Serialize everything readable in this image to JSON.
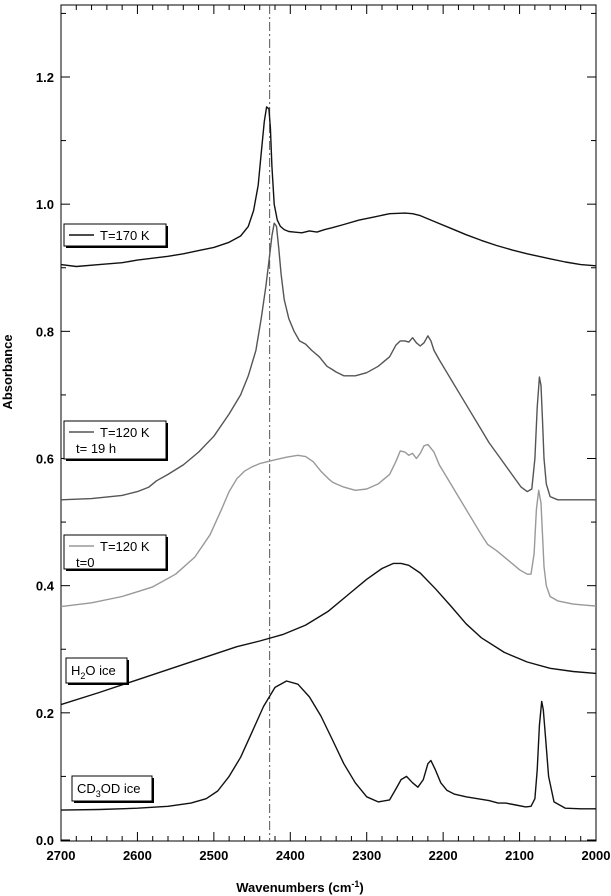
{
  "chart_data": {
    "type": "line",
    "xlabel": "Wavenumbers (cm",
    "xlabel_sup": "-1",
    "xlabel_end": ")",
    "ylabel": "Absorbance",
    "xlim": [
      2700,
      2000
    ],
    "ylim": [
      0.0,
      1.3
    ],
    "x_ticks": [
      2700,
      2600,
      2500,
      2400,
      2300,
      2200,
      2100,
      2000
    ],
    "x_tick_labels": [
      "2700",
      "2600",
      "2500",
      "2400",
      "2300",
      "2200",
      "2100",
      "2000"
    ],
    "y_ticks": [
      0.0,
      0.2,
      0.4,
      0.6,
      0.8,
      1.0,
      1.2
    ],
    "y_tick_labels": [
      "0.0",
      "0.2",
      "0.4",
      "0.6",
      "0.8",
      "1.0",
      "1.2"
    ],
    "grid": false,
    "reference_line_x": 2427,
    "series": [
      {
        "key": "t170",
        "legend_line1": "T=170 K",
        "legend_line2": "",
        "color": "#111111",
        "x": [
          2700,
          2680,
          2650,
          2620,
          2600,
          2580,
          2560,
          2540,
          2520,
          2500,
          2480,
          2465,
          2455,
          2448,
          2442,
          2438,
          2434,
          2431,
          2428,
          2426,
          2424,
          2421,
          2417,
          2413,
          2408,
          2402,
          2395,
          2385,
          2375,
          2365,
          2355,
          2345,
          2330,
          2310,
          2290,
          2270,
          2250,
          2240,
          2230,
          2210,
          2190,
          2170,
          2150,
          2130,
          2110,
          2090,
          2075,
          2060,
          2040,
          2020,
          2000
        ],
        "y": [
          0.905,
          0.902,
          0.905,
          0.908,
          0.912,
          0.915,
          0.918,
          0.922,
          0.927,
          0.932,
          0.94,
          0.95,
          0.965,
          0.99,
          1.03,
          1.08,
          1.13,
          1.153,
          1.15,
          1.12,
          1.06,
          1.0,
          0.975,
          0.965,
          0.96,
          0.957,
          0.956,
          0.955,
          0.958,
          0.956,
          0.96,
          0.963,
          0.968,
          0.975,
          0.98,
          0.985,
          0.986,
          0.985,
          0.982,
          0.972,
          0.962,
          0.952,
          0.943,
          0.935,
          0.928,
          0.922,
          0.918,
          0.914,
          0.909,
          0.905,
          0.903
        ]
      },
      {
        "key": "t120_19h",
        "legend_line1": "T=120 K",
        "legend_line2": "t= 19 h",
        "color": "#555555",
        "x": [
          2700,
          2660,
          2620,
          2600,
          2585,
          2575,
          2560,
          2540,
          2520,
          2500,
          2480,
          2465,
          2455,
          2445,
          2438,
          2432,
          2428,
          2424,
          2421,
          2418,
          2415,
          2412,
          2408,
          2402,
          2395,
          2388,
          2380,
          2372,
          2362,
          2352,
          2345,
          2340,
          2330,
          2315,
          2300,
          2285,
          2270,
          2262,
          2256,
          2250,
          2245,
          2240,
          2235,
          2230,
          2225,
          2220,
          2216,
          2212,
          2205,
          2195,
          2180,
          2165,
          2150,
          2140,
          2125,
          2110,
          2098,
          2090,
          2084,
          2080,
          2077,
          2074,
          2072,
          2070,
          2068,
          2065,
          2060,
          2050,
          2030,
          2010,
          2000
        ],
        "y": [
          0.535,
          0.537,
          0.542,
          0.548,
          0.555,
          0.565,
          0.575,
          0.59,
          0.61,
          0.635,
          0.67,
          0.7,
          0.73,
          0.77,
          0.82,
          0.87,
          0.91,
          0.95,
          0.97,
          0.965,
          0.93,
          0.89,
          0.85,
          0.82,
          0.8,
          0.785,
          0.78,
          0.77,
          0.76,
          0.745,
          0.74,
          0.736,
          0.73,
          0.73,
          0.735,
          0.745,
          0.76,
          0.778,
          0.785,
          0.785,
          0.783,
          0.79,
          0.782,
          0.777,
          0.782,
          0.793,
          0.785,
          0.77,
          0.755,
          0.735,
          0.705,
          0.675,
          0.645,
          0.625,
          0.6,
          0.575,
          0.555,
          0.548,
          0.552,
          0.6,
          0.68,
          0.728,
          0.715,
          0.66,
          0.6,
          0.56,
          0.54,
          0.535,
          0.535,
          0.535,
          0.535
        ]
      },
      {
        "key": "t120_0",
        "legend_line1": "T=120 K",
        "legend_line2": "t=0",
        "color": "#999999",
        "x": [
          2700,
          2660,
          2620,
          2580,
          2550,
          2525,
          2505,
          2490,
          2480,
          2470,
          2460,
          2450,
          2440,
          2430,
          2420,
          2405,
          2390,
          2380,
          2370,
          2360,
          2350,
          2345,
          2340,
          2330,
          2315,
          2300,
          2285,
          2270,
          2262,
          2256,
          2250,
          2245,
          2240,
          2235,
          2230,
          2225,
          2220,
          2212,
          2205,
          2195,
          2180,
          2165,
          2150,
          2142,
          2130,
          2115,
          2100,
          2090,
          2085,
          2081,
          2078,
          2075,
          2072,
          2070,
          2068,
          2065,
          2060,
          2050,
          2030,
          2010,
          2000
        ],
        "y": [
          0.367,
          0.373,
          0.383,
          0.398,
          0.418,
          0.445,
          0.48,
          0.52,
          0.548,
          0.568,
          0.58,
          0.587,
          0.592,
          0.595,
          0.598,
          0.602,
          0.605,
          0.603,
          0.595,
          0.58,
          0.568,
          0.563,
          0.56,
          0.555,
          0.55,
          0.552,
          0.56,
          0.575,
          0.595,
          0.612,
          0.61,
          0.605,
          0.608,
          0.6,
          0.608,
          0.62,
          0.622,
          0.61,
          0.59,
          0.57,
          0.54,
          0.51,
          0.48,
          0.465,
          0.455,
          0.44,
          0.425,
          0.418,
          0.418,
          0.45,
          0.52,
          0.55,
          0.53,
          0.48,
          0.43,
          0.4,
          0.383,
          0.376,
          0.371,
          0.369,
          0.368
        ]
      },
      {
        "key": "h2o",
        "legend_line1": "H",
        "legend_sub": "2",
        "legend_line1_end": "O ice",
        "legend_line2": "",
        "color": "#111111",
        "x": [
          2700,
          2650,
          2600,
          2550,
          2500,
          2470,
          2440,
          2410,
          2380,
          2350,
          2320,
          2300,
          2280,
          2265,
          2255,
          2245,
          2230,
          2210,
          2190,
          2170,
          2150,
          2120,
          2090,
          2060,
          2030,
          2000
        ],
        "y": [
          0.213,
          0.232,
          0.252,
          0.272,
          0.292,
          0.304,
          0.313,
          0.323,
          0.338,
          0.36,
          0.39,
          0.41,
          0.427,
          0.435,
          0.435,
          0.432,
          0.42,
          0.395,
          0.368,
          0.34,
          0.318,
          0.295,
          0.28,
          0.27,
          0.265,
          0.262
        ]
      },
      {
        "key": "cd3od",
        "legend_line1": "CD",
        "legend_sub": "3",
        "legend_line1_end": "OD ice",
        "legend_line2": "",
        "color": "#111111",
        "x": [
          2700,
          2650,
          2600,
          2560,
          2530,
          2510,
          2495,
          2480,
          2465,
          2450,
          2435,
          2420,
          2405,
          2390,
          2375,
          2360,
          2345,
          2330,
          2315,
          2300,
          2285,
          2270,
          2262,
          2255,
          2248,
          2240,
          2233,
          2226,
          2220,
          2216,
          2210,
          2203,
          2195,
          2185,
          2170,
          2155,
          2140,
          2128,
          2118,
          2105,
          2092,
          2085,
          2080,
          2077,
          2074,
          2071,
          2069,
          2066,
          2062,
          2055,
          2040,
          2020,
          2000
        ],
        "y": [
          0.047,
          0.048,
          0.05,
          0.053,
          0.058,
          0.065,
          0.077,
          0.1,
          0.13,
          0.17,
          0.21,
          0.24,
          0.25,
          0.245,
          0.225,
          0.195,
          0.158,
          0.12,
          0.09,
          0.068,
          0.06,
          0.063,
          0.08,
          0.095,
          0.1,
          0.09,
          0.083,
          0.095,
          0.12,
          0.125,
          0.11,
          0.09,
          0.078,
          0.072,
          0.068,
          0.065,
          0.062,
          0.058,
          0.058,
          0.055,
          0.052,
          0.053,
          0.065,
          0.11,
          0.18,
          0.218,
          0.205,
          0.16,
          0.1,
          0.06,
          0.05,
          0.049,
          0.049
        ]
      }
    ]
  }
}
